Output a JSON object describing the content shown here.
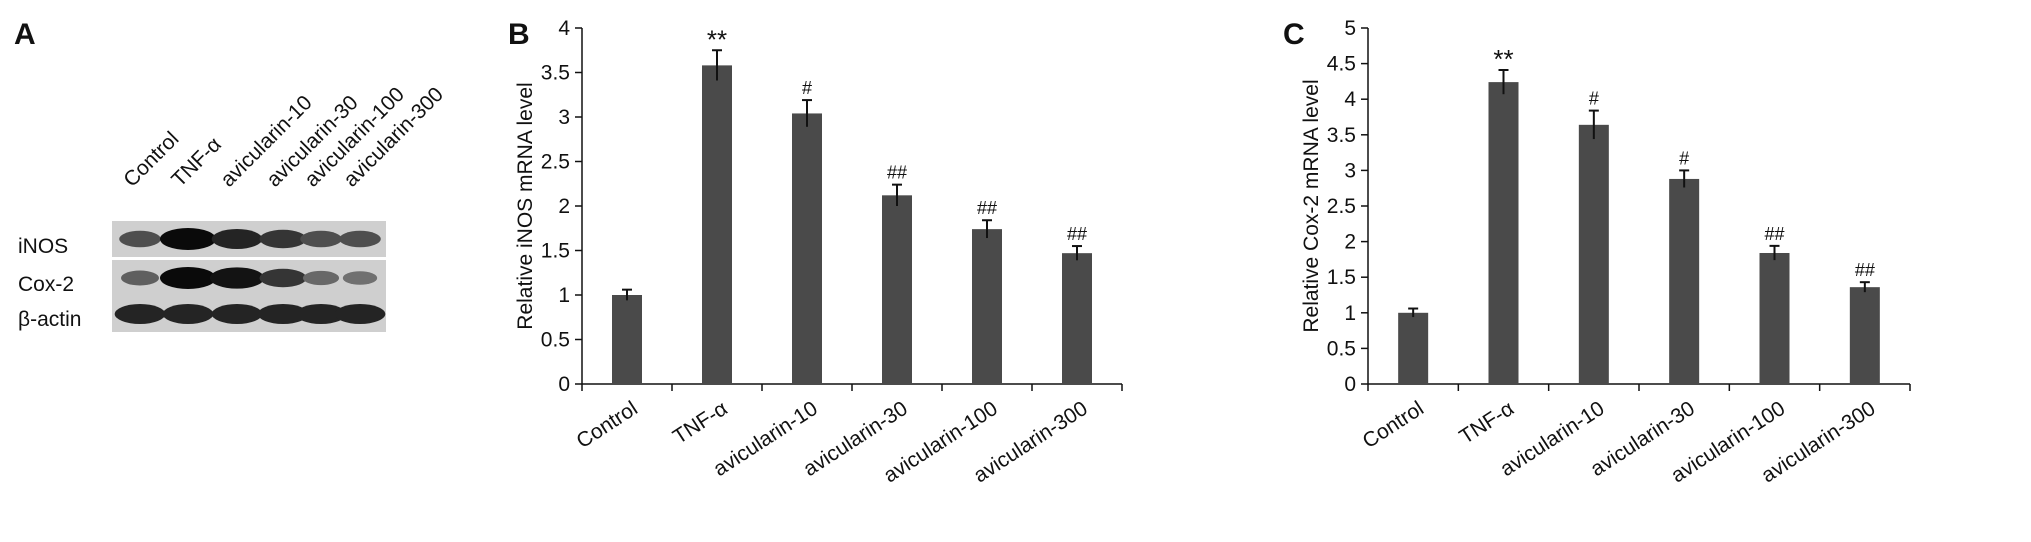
{
  "panels": {
    "a": {
      "letter": "A",
      "lanes": [
        "Control",
        "TNF-α",
        "avicularin-10",
        "avicularin-30",
        "avicularin-100",
        "avicularin-300"
      ],
      "rows": [
        "iNOS",
        "Cox-2",
        "β-actin"
      ],
      "band_intensity": [
        [
          0.6,
          1.0,
          0.85,
          0.75,
          0.6,
          0.6
        ],
        [
          0.5,
          1.0,
          0.95,
          0.75,
          0.45,
          0.4
        ],
        [
          0.85,
          0.85,
          0.85,
          0.85,
          0.85,
          0.85
        ]
      ]
    },
    "b": {
      "letter": "B"
    },
    "c": {
      "letter": "C"
    }
  },
  "chart_data": [
    {
      "type": "bar",
      "categories": [
        "Control",
        "TNF-α",
        "avicularin-10",
        "avicularin-30",
        "avicularin-100",
        "avicularin-300"
      ],
      "values": [
        1.0,
        3.58,
        3.04,
        2.12,
        1.74,
        1.47
      ],
      "errors": [
        0.06,
        0.17,
        0.15,
        0.12,
        0.1,
        0.08
      ],
      "annotations": [
        "",
        "**",
        "#",
        "##",
        "##",
        "##"
      ],
      "title": "",
      "xlabel": "",
      "ylabel": "Relative iNOS mRNA level",
      "ylim": [
        0,
        4
      ],
      "yticks": [
        "0",
        "0.5",
        "1",
        "1.5",
        "2",
        "2.5",
        "3",
        "3.5",
        "4"
      ],
      "ytick_values": [
        0,
        0.5,
        1,
        1.5,
        2,
        2.5,
        3,
        3.5,
        4
      ],
      "bar_color": "#4a4a4a",
      "grid": false
    },
    {
      "type": "bar",
      "categories": [
        "Control",
        "TNF-α",
        "avicularin-10",
        "avicularin-30",
        "avicularin-100",
        "avicularin-300"
      ],
      "values": [
        1.0,
        4.24,
        3.64,
        2.88,
        1.84,
        1.36
      ],
      "errors": [
        0.06,
        0.17,
        0.2,
        0.12,
        0.1,
        0.07
      ],
      "annotations": [
        "",
        "**",
        "#",
        "#",
        "##",
        "##"
      ],
      "title": "",
      "xlabel": "",
      "ylabel": "Relative Cox-2 mRNA level",
      "ylim": [
        0,
        5
      ],
      "yticks": [
        "0",
        "0.5",
        "1",
        "1.5",
        "2",
        "2.5",
        "3",
        "3.5",
        "4",
        "4.5",
        "5"
      ],
      "ytick_values": [
        0,
        0.5,
        1,
        1.5,
        2,
        2.5,
        3,
        3.5,
        4,
        4.5,
        5
      ],
      "bar_color": "#4a4a4a",
      "grid": false
    }
  ]
}
